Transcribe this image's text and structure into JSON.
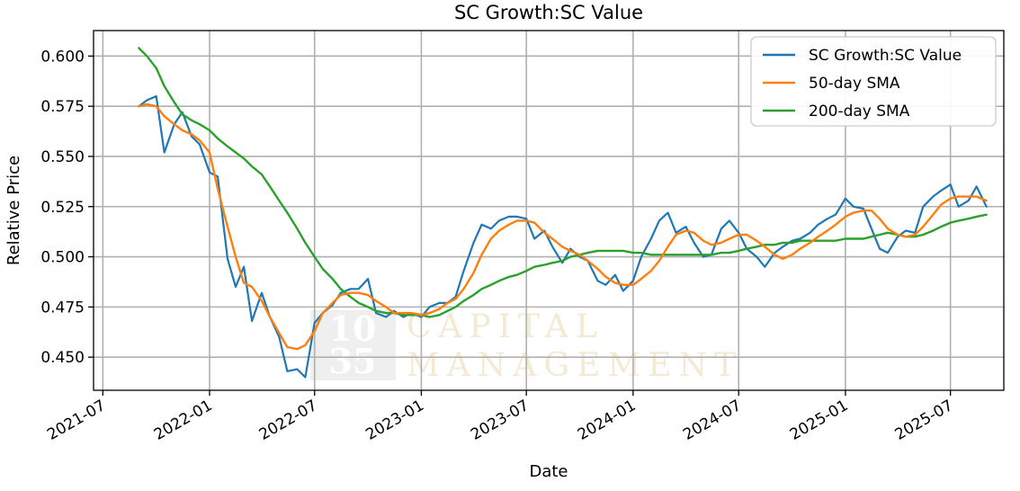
{
  "chart_data": {
    "type": "line",
    "title": "SC Growth:SC Value",
    "xlabel": "Date",
    "ylabel": "Relative Price",
    "x_ticks": [
      "2021-07",
      "2022-01",
      "2022-07",
      "2023-01",
      "2023-07",
      "2024-01",
      "2024-07",
      "2025-01",
      "2025-07"
    ],
    "y_ticks": [
      "0.450",
      "0.475",
      "0.500",
      "0.525",
      "0.550",
      "0.575",
      "0.600"
    ],
    "xlim": [
      "2021-06-15",
      "2025-10-01"
    ],
    "ylim": [
      0.4335,
      0.6127
    ],
    "grid": true,
    "legend_position": "top-right",
    "x": [
      "2021-09-01",
      "2021-09-15",
      "2021-10-01",
      "2021-10-15",
      "2021-11-01",
      "2021-11-15",
      "2021-12-01",
      "2021-12-15",
      "2022-01-01",
      "2022-01-15",
      "2022-02-01",
      "2022-02-15",
      "2022-03-01",
      "2022-03-15",
      "2022-04-01",
      "2022-04-15",
      "2022-05-01",
      "2022-05-15",
      "2022-06-01",
      "2022-06-15",
      "2022-07-01",
      "2022-07-15",
      "2022-08-01",
      "2022-08-15",
      "2022-09-01",
      "2022-09-15",
      "2022-10-01",
      "2022-10-15",
      "2022-11-01",
      "2022-11-15",
      "2022-12-01",
      "2022-12-15",
      "2023-01-01",
      "2023-01-15",
      "2023-02-01",
      "2023-02-15",
      "2023-03-01",
      "2023-03-15",
      "2023-04-01",
      "2023-04-15",
      "2023-05-01",
      "2023-05-15",
      "2023-06-01",
      "2023-06-15",
      "2023-07-01",
      "2023-07-15",
      "2023-08-01",
      "2023-08-15",
      "2023-09-01",
      "2023-09-15",
      "2023-10-01",
      "2023-10-15",
      "2023-11-01",
      "2023-11-15",
      "2023-12-01",
      "2023-12-15",
      "2024-01-01",
      "2024-01-15",
      "2024-02-01",
      "2024-02-15",
      "2024-03-01",
      "2024-03-15",
      "2024-04-01",
      "2024-04-15",
      "2024-05-01",
      "2024-05-15",
      "2024-06-01",
      "2024-06-15",
      "2024-07-01",
      "2024-07-15",
      "2024-08-01",
      "2024-08-15",
      "2024-09-01",
      "2024-09-15",
      "2024-10-01",
      "2024-10-15",
      "2024-11-01",
      "2024-11-15",
      "2024-12-01",
      "2024-12-15",
      "2025-01-01",
      "2025-01-15",
      "2025-02-01",
      "2025-02-15",
      "2025-03-01",
      "2025-03-15",
      "2025-04-01",
      "2025-04-15",
      "2025-05-01",
      "2025-05-15",
      "2025-06-01",
      "2025-06-15",
      "2025-07-01",
      "2025-07-15",
      "2025-08-01",
      "2025-08-15",
      "2025-09-01"
    ],
    "series": [
      {
        "name": "SC Growth:SC Value",
        "color": "#1f77b4",
        "values": [
          0.575,
          0.578,
          0.58,
          0.552,
          0.566,
          0.572,
          0.56,
          0.556,
          0.542,
          0.54,
          0.499,
          0.485,
          0.495,
          0.468,
          0.482,
          0.47,
          0.46,
          0.443,
          0.444,
          0.44,
          0.467,
          0.472,
          0.476,
          0.482,
          0.484,
          0.484,
          0.489,
          0.472,
          0.47,
          0.473,
          0.47,
          0.472,
          0.47,
          0.475,
          0.477,
          0.477,
          0.48,
          0.493,
          0.507,
          0.516,
          0.514,
          0.518,
          0.52,
          0.52,
          0.519,
          0.509,
          0.513,
          0.505,
          0.497,
          0.504,
          0.5,
          0.498,
          0.488,
          0.486,
          0.491,
          0.483,
          0.488,
          0.5,
          0.509,
          0.518,
          0.522,
          0.512,
          0.515,
          0.507,
          0.5,
          0.501,
          0.514,
          0.518,
          0.512,
          0.504,
          0.5,
          0.495,
          0.502,
          0.505,
          0.508,
          0.509,
          0.512,
          0.516,
          0.519,
          0.521,
          0.529,
          0.525,
          0.524,
          0.514,
          0.504,
          0.502,
          0.51,
          0.513,
          0.512,
          0.525,
          0.53,
          0.533,
          0.536,
          0.525,
          0.528,
          0.535,
          0.525
        ]
      },
      {
        "name": "50-day SMA",
        "color": "#ff7f0e",
        "values": [
          0.575,
          0.576,
          0.575,
          0.57,
          0.566,
          0.563,
          0.561,
          0.558,
          0.552,
          0.534,
          0.515,
          0.5,
          0.487,
          0.485,
          0.478,
          0.47,
          0.462,
          0.455,
          0.454,
          0.456,
          0.463,
          0.472,
          0.477,
          0.481,
          0.482,
          0.482,
          0.481,
          0.478,
          0.475,
          0.472,
          0.472,
          0.472,
          0.471,
          0.472,
          0.474,
          0.477,
          0.479,
          0.484,
          0.492,
          0.501,
          0.509,
          0.513,
          0.516,
          0.518,
          0.518,
          0.517,
          0.512,
          0.509,
          0.505,
          0.503,
          0.501,
          0.498,
          0.494,
          0.49,
          0.487,
          0.486,
          0.486,
          0.489,
          0.493,
          0.498,
          0.505,
          0.511,
          0.513,
          0.512,
          0.508,
          0.506,
          0.507,
          0.509,
          0.511,
          0.511,
          0.508,
          0.505,
          0.501,
          0.499,
          0.501,
          0.504,
          0.507,
          0.51,
          0.513,
          0.516,
          0.52,
          0.522,
          0.523,
          0.523,
          0.519,
          0.514,
          0.511,
          0.51,
          0.511,
          0.515,
          0.521,
          0.526,
          0.529,
          0.53,
          0.53,
          0.53,
          0.528
        ]
      },
      {
        "name": "200-day SMA",
        "color": "#2ca02c",
        "values": [
          0.604,
          0.6,
          0.594,
          0.585,
          0.577,
          0.571,
          0.568,
          0.566,
          0.563,
          0.559,
          0.555,
          0.552,
          0.549,
          0.545,
          0.541,
          0.535,
          0.528,
          0.522,
          0.514,
          0.507,
          0.5,
          0.494,
          0.489,
          0.484,
          0.48,
          0.477,
          0.475,
          0.473,
          0.472,
          0.472,
          0.471,
          0.471,
          0.471,
          0.47,
          0.471,
          0.473,
          0.475,
          0.478,
          0.481,
          0.484,
          0.486,
          0.488,
          0.49,
          0.491,
          0.493,
          0.495,
          0.496,
          0.497,
          0.498,
          0.5,
          0.501,
          0.502,
          0.503,
          0.503,
          0.503,
          0.503,
          0.502,
          0.502,
          0.501,
          0.501,
          0.501,
          0.501,
          0.501,
          0.501,
          0.501,
          0.501,
          0.502,
          0.502,
          0.503,
          0.504,
          0.505,
          0.506,
          0.506,
          0.507,
          0.507,
          0.508,
          0.508,
          0.508,
          0.508,
          0.508,
          0.509,
          0.509,
          0.509,
          0.51,
          0.511,
          0.512,
          0.511,
          0.51,
          0.51,
          0.511,
          0.513,
          0.515,
          0.517,
          0.518,
          0.519,
          0.52,
          0.521
        ]
      }
    ]
  },
  "watermark": {
    "logo_top": "10",
    "logo_bottom": "35",
    "word_top": "CAPITAL",
    "word_bottom": "MANAGEMENT",
    "logo_color": "#efefef",
    "word_color": "#f4ead3"
  }
}
